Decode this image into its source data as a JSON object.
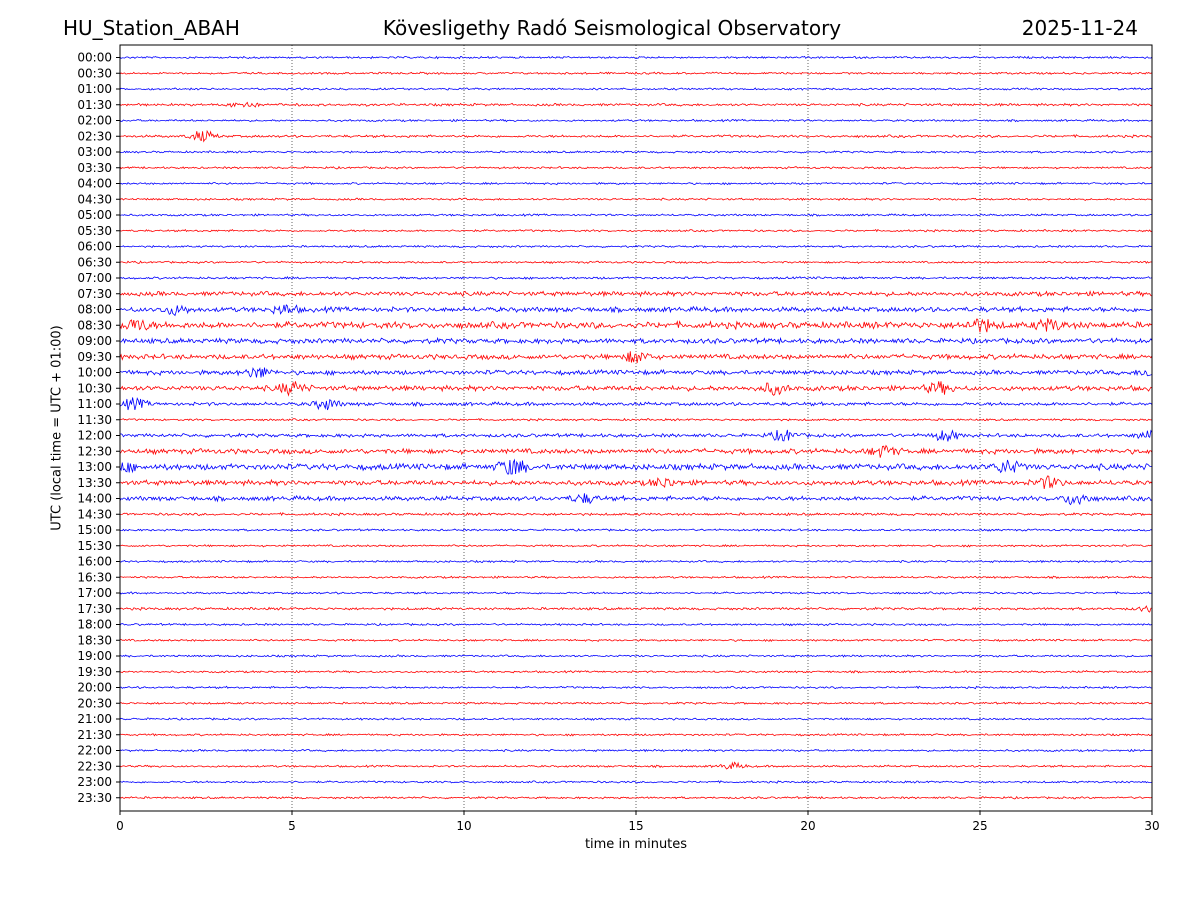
{
  "header": {
    "station": "HU_Station_ABAH",
    "observatory": "Kövesligethy Radó Seismological Observatory",
    "date": "2025-11-24"
  },
  "chart_data": {
    "type": "line",
    "title": "Kövesligethy Radó Seismological Observatory",
    "xlabel": "time in minutes",
    "ylabel": "UTC (local time = UTC + 01:00)",
    "xlim": [
      0,
      30
    ],
    "xticks": [
      0,
      5,
      10,
      15,
      20,
      25,
      30
    ],
    "xtick_labels": [
      "0",
      "5",
      "10",
      "15",
      "20",
      "25",
      "30"
    ],
    "grid": "vertical dotted at x ticks",
    "colors": [
      "#0000ff",
      "#ff0000"
    ],
    "rows": [
      "00:00",
      "00:30",
      "01:00",
      "01:30",
      "02:00",
      "02:30",
      "03:00",
      "03:30",
      "04:00",
      "04:30",
      "05:00",
      "05:30",
      "06:00",
      "06:30",
      "07:00",
      "07:30",
      "08:00",
      "08:30",
      "09:00",
      "09:30",
      "10:00",
      "10:30",
      "11:00",
      "11:30",
      "12:00",
      "12:30",
      "13:00",
      "13:30",
      "14:00",
      "14:30",
      "15:00",
      "15:30",
      "16:00",
      "16:30",
      "17:00",
      "17:30",
      "18:00",
      "18:30",
      "19:00",
      "19:30",
      "20:00",
      "20:30",
      "21:00",
      "21:30",
      "22:00",
      "22:30",
      "23:00",
      "23:30"
    ],
    "noise_amplitude": [
      0.8,
      0.8,
      0.8,
      1.0,
      0.8,
      1.0,
      0.8,
      0.8,
      0.8,
      0.8,
      0.8,
      0.8,
      0.8,
      0.8,
      0.9,
      1.8,
      2.0,
      2.6,
      2.0,
      2.0,
      1.8,
      2.0,
      1.4,
      0.8,
      1.4,
      2.0,
      2.4,
      2.0,
      1.8,
      1.0,
      0.8,
      0.8,
      0.8,
      0.8,
      0.8,
      1.0,
      0.8,
      0.8,
      0.8,
      0.8,
      0.8,
      0.8,
      0.8,
      0.8,
      0.8,
      0.8,
      0.8,
      0.8
    ],
    "events": [
      {
        "row": "01:30",
        "minute": 3.6,
        "amplitude": 3
      },
      {
        "row": "02:30",
        "minute": 2.4,
        "amplitude": 5
      },
      {
        "row": "08:00",
        "minute": 1.6,
        "amplitude": 4
      },
      {
        "row": "08:00",
        "minute": 4.8,
        "amplitude": 4
      },
      {
        "row": "08:30",
        "minute": 0.5,
        "amplitude": 5
      },
      {
        "row": "08:30",
        "minute": 25.0,
        "amplitude": 6
      },
      {
        "row": "08:30",
        "minute": 27.0,
        "amplitude": 5
      },
      {
        "row": "09:30",
        "minute": 15.0,
        "amplitude": 5
      },
      {
        "row": "10:00",
        "minute": 4.0,
        "amplitude": 5
      },
      {
        "row": "10:00",
        "minute": 30.0,
        "amplitude": 4
      },
      {
        "row": "10:30",
        "minute": 5.0,
        "amplitude": 6
      },
      {
        "row": "10:30",
        "minute": 19.0,
        "amplitude": 5
      },
      {
        "row": "10:30",
        "minute": 23.8,
        "amplitude": 5
      },
      {
        "row": "11:00",
        "minute": 0.4,
        "amplitude": 5
      },
      {
        "row": "11:00",
        "minute": 6.0,
        "amplitude": 5
      },
      {
        "row": "12:00",
        "minute": 19.3,
        "amplitude": 5
      },
      {
        "row": "12:00",
        "minute": 24.0,
        "amplitude": 5
      },
      {
        "row": "12:00",
        "minute": 30.0,
        "amplitude": 5
      },
      {
        "row": "12:30",
        "minute": 22.2,
        "amplitude": 5
      },
      {
        "row": "13:00",
        "minute": 0.0,
        "amplitude": 5
      },
      {
        "row": "13:00",
        "minute": 11.4,
        "amplitude": 9
      },
      {
        "row": "13:00",
        "minute": 25.8,
        "amplitude": 6
      },
      {
        "row": "13:30",
        "minute": 15.8,
        "amplitude": 4
      },
      {
        "row": "13:30",
        "minute": 27.0,
        "amplitude": 5
      },
      {
        "row": "14:00",
        "minute": 13.5,
        "amplitude": 4
      },
      {
        "row": "14:00",
        "minute": 27.8,
        "amplitude": 6
      },
      {
        "row": "17:30",
        "minute": 30.0,
        "amplitude": 3
      },
      {
        "row": "22:30",
        "minute": 17.8,
        "amplitude": 3
      }
    ]
  }
}
